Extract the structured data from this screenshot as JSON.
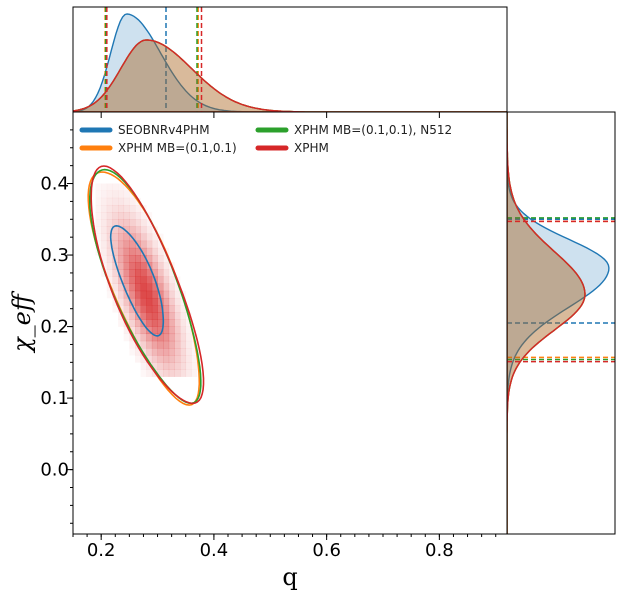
{
  "chart_data": {
    "type": "scatter",
    "subtype": "corner-plot: 2D posterior contours with marginal histograms",
    "xlabel": "q",
    "ylabel": "χ_eff",
    "xlim": [
      0.15,
      0.92
    ],
    "ylim": [
      -0.09,
      0.5
    ],
    "x_ticks": [
      "0.2",
      "0.4",
      "0.6",
      "0.8"
    ],
    "x_tick_values": [
      0.2,
      0.4,
      0.6,
      0.8
    ],
    "y_ticks": [
      "0.0",
      "0.1",
      "0.2",
      "0.3",
      "0.4"
    ],
    "y_tick_values": [
      0.0,
      0.1,
      0.2,
      0.3,
      0.4
    ],
    "legend_placement": "upper-left",
    "grid": false,
    "series": [
      {
        "name": "SEOBNRv4PHM",
        "color": "#1f77b4",
        "contour_center": [
          0.265,
          0.265
        ],
        "contour_half_axes": [
          0.085,
          0.085
        ],
        "q_peak": 0.245,
        "q_upper": 0.315,
        "chi_peak": 0.282,
        "chi_lower": 0.205,
        "chi_upper": 0.35
      },
      {
        "name": "XPHM MB=(0.1,0.1)",
        "color": "#ff7f0e",
        "contour_center": [
          0.277,
          0.258
        ],
        "contour_half_axes": [
          0.135,
          0.135
        ],
        "q_peak": 0.28,
        "q_lower": 0.207,
        "q_upper": 0.372,
        "chi_peak": 0.245,
        "chi_lower": 0.157,
        "chi_upper": 0.347
      },
      {
        "name": "XPHM MB=(0.1,0.1), N512",
        "color": "#2ca02c",
        "contour_center": [
          0.277,
          0.259
        ],
        "contour_half_axes": [
          0.135,
          0.135
        ],
        "q_peak": 0.28,
        "q_lower": 0.208,
        "q_upper": 0.37,
        "chi_peak": 0.245,
        "chi_lower": 0.154,
        "chi_upper": 0.352
      },
      {
        "name": "XPHM",
        "color": "#d62728",
        "contour_center": [
          0.279,
          0.257
        ],
        "contour_half_axes": [
          0.137,
          0.137
        ],
        "q_peak": 0.28,
        "q_lower": 0.21,
        "q_upper": 0.378,
        "chi_peak": 0.245,
        "chi_lower": 0.151,
        "chi_upper": 0.347
      }
    ],
    "heatmap": {
      "color": "#d62728",
      "center": [
        0.28,
        0.245
      ]
    }
  }
}
